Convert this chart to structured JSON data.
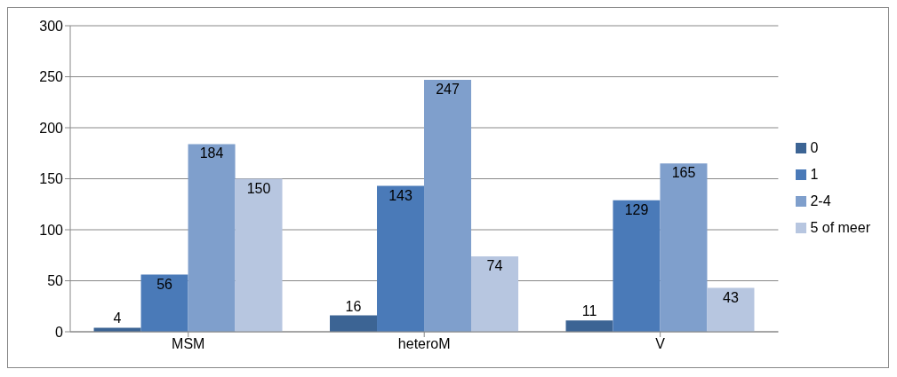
{
  "chart_data": {
    "type": "bar",
    "categories": [
      "MSM",
      "heteroM",
      "V"
    ],
    "series": [
      {
        "name": "0",
        "color": "#3c6494",
        "values": [
          4,
          16,
          11
        ]
      },
      {
        "name": "1",
        "color": "#4a7ab8",
        "values": [
          56,
          143,
          129
        ]
      },
      {
        "name": "2-4",
        "color": "#7f9fcc",
        "values": [
          184,
          247,
          165
        ]
      },
      {
        "name": "5 of meer",
        "color": "#b7c6e0",
        "values": [
          150,
          74,
          43
        ]
      }
    ],
    "ylim": [
      0,
      300
    ],
    "yticks": [
      0,
      50,
      100,
      150,
      200,
      250,
      300
    ],
    "grid": "y",
    "legend": "right",
    "data_labels": true
  }
}
